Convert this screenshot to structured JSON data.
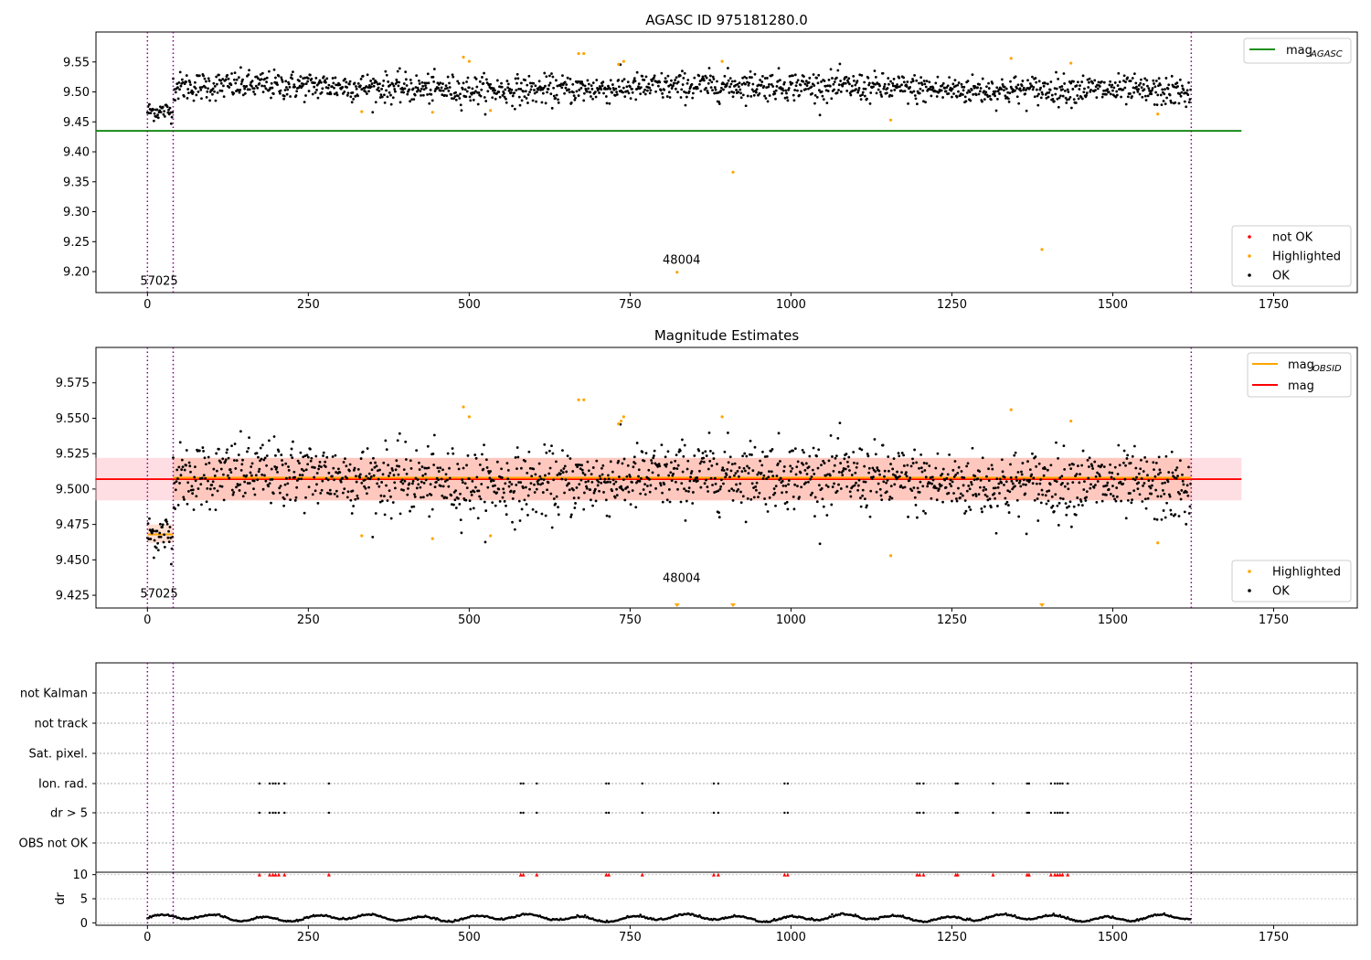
{
  "page_title": "AGASC ID 975181280.0",
  "chart_data": [
    {
      "type": "scatter",
      "title": "AGASC ID 975181280.0",
      "xlim": [
        -80,
        1880
      ],
      "ylim": [
        9.165,
        9.6
      ],
      "xticks": [
        0,
        250,
        500,
        750,
        1000,
        1250,
        1500,
        1750
      ],
      "yticks": [
        9.2,
        9.25,
        9.3,
        9.35,
        9.4,
        9.45,
        9.5,
        9.55
      ],
      "ytick_labels": [
        "9.20",
        "9.25",
        "9.30",
        "9.35",
        "9.40",
        "9.45",
        "9.50",
        "9.55"
      ],
      "obsid_boundaries": [
        0,
        40,
        1622
      ],
      "obsid_annotations": [
        {
          "label": "57025",
          "x": 18,
          "y": 9.178
        },
        {
          "label": "48004",
          "x": 830,
          "y": 9.213
        }
      ],
      "mag_agasc": {
        "value": 9.435,
        "x_range": [
          0,
          1700
        ]
      },
      "series": [
        {
          "name": "not OK",
          "color": "#ff0000",
          "points": []
        },
        {
          "name": "Highlighted",
          "color": "#ffa500",
          "points": [
            [
              333,
              9.467
            ],
            [
              443,
              9.466
            ],
            [
              491,
              9.558
            ],
            [
              500,
              9.551
            ],
            [
              533,
              9.469
            ],
            [
              670,
              9.564
            ],
            [
              678,
              9.564
            ],
            [
              732,
              9.546
            ],
            [
              740,
              9.551
            ],
            [
              823,
              9.199
            ],
            [
              893,
              9.551
            ],
            [
              910,
              9.366
            ],
            [
              1155,
              9.453
            ],
            [
              1342,
              9.556
            ],
            [
              1390,
              9.237
            ],
            [
              1435,
              9.548
            ],
            [
              1570,
              9.463
            ]
          ]
        },
        {
          "name": "OK",
          "color": "#000000",
          "points": [],
          "x_range": [
            0,
            1622
          ],
          "y_center": 9.506,
          "y_spread": 0.018,
          "segment_1": {
            "x_range": [
              0,
              40
            ],
            "y_center": 9.468,
            "y_spread": 0.01
          }
        }
      ],
      "legend_lines": [
        {
          "label": "mag",
          "sub": "AGASC",
          "color": "#008000"
        }
      ],
      "legend_markers": [
        "not OK",
        "Highlighted",
        "OK"
      ],
      "legend_lines_position": "top-right",
      "legend_markers_position": "bottom-right"
    },
    {
      "type": "scatter",
      "title": "Magnitude Estimates",
      "xlim": [
        -80,
        1880
      ],
      "ylim": [
        9.416,
        9.6
      ],
      "xticks": [
        0,
        250,
        500,
        750,
        1000,
        1250,
        1500,
        1750
      ],
      "yticks": [
        9.425,
        9.45,
        9.475,
        9.5,
        9.525,
        9.55,
        9.575
      ],
      "ytick_labels": [
        "9.425",
        "9.450",
        "9.475",
        "9.500",
        "9.525",
        "9.550",
        "9.575"
      ],
      "obsid_boundaries": [
        0,
        40,
        1622
      ],
      "obsid_annotations": [
        {
          "label": "57025",
          "x": 18,
          "y": 9.4235
        },
        {
          "label": "48004",
          "x": 830,
          "y": 9.4345
        }
      ],
      "mag": {
        "value": 9.507,
        "band": [
          9.492,
          9.522
        ],
        "x_range": [
          0,
          1700
        ]
      },
      "mag_obsid": [
        {
          "x_range": [
            0,
            40
          ],
          "value": 9.468,
          "band": [
            9.462,
            9.475
          ]
        },
        {
          "x_range": [
            40,
            1622
          ],
          "value": 9.508,
          "band": [
            9.492,
            9.522
          ]
        }
      ],
      "offscale_markers_x": [
        823,
        910,
        1390
      ],
      "series": [
        {
          "name": "Highlighted",
          "color": "#ffa500",
          "points": [
            [
              333,
              9.467
            ],
            [
              443,
              9.465
            ],
            [
              491,
              9.558
            ],
            [
              500,
              9.551
            ],
            [
              533,
              9.467
            ],
            [
              670,
              9.563
            ],
            [
              678,
              9.563
            ],
            [
              732,
              9.546
            ],
            [
              736,
              9.548
            ],
            [
              740,
              9.551
            ],
            [
              893,
              9.551
            ],
            [
              1155,
              9.453
            ],
            [
              1342,
              9.556
            ],
            [
              1435,
              9.548
            ],
            [
              1570,
              9.462
            ]
          ]
        },
        {
          "name": "OK",
          "color": "#000000",
          "points": []
        }
      ],
      "legend_lines": [
        {
          "label": "mag",
          "sub": "OBSID",
          "color": "#ffa500"
        },
        {
          "label": "mag",
          "sub": "",
          "color": "#ff0000"
        }
      ],
      "legend_markers": [
        "Highlighted",
        "OK"
      ],
      "legend_lines_position": "top-right",
      "legend_markers_position": "bottom-right"
    },
    {
      "type": "scatter",
      "title": "",
      "xlim": [
        -80,
        1880
      ],
      "xticks": [
        0,
        250,
        500,
        750,
        1000,
        1250,
        1500,
        1750
      ],
      "obsid_boundaries": [
        0,
        40,
        1622
      ],
      "flag_rows": [
        "not Kalman",
        "not track",
        "Sat. pixel.",
        "Ion. rad.",
        "dr > 5",
        "OBS not OK"
      ],
      "flag_x": [
        174,
        190,
        195,
        199,
        204,
        213,
        282,
        580,
        584,
        605,
        713,
        717,
        769,
        880,
        887,
        990,
        995,
        1196,
        1200,
        1206,
        1256,
        1259,
        1314,
        1367,
        1370,
        1404,
        1410,
        1414,
        1418,
        1422,
        1430
      ],
      "dr_ylabel": "dr",
      "dr_yticks": [
        0,
        5,
        10
      ],
      "dr_ylim": [
        -0.5,
        10.5
      ],
      "dr_threshold": 10,
      "series": [
        {
          "name": "dr",
          "color": "#000000",
          "points": [],
          "x_range": [
            0,
            1622
          ]
        }
      ]
    }
  ]
}
